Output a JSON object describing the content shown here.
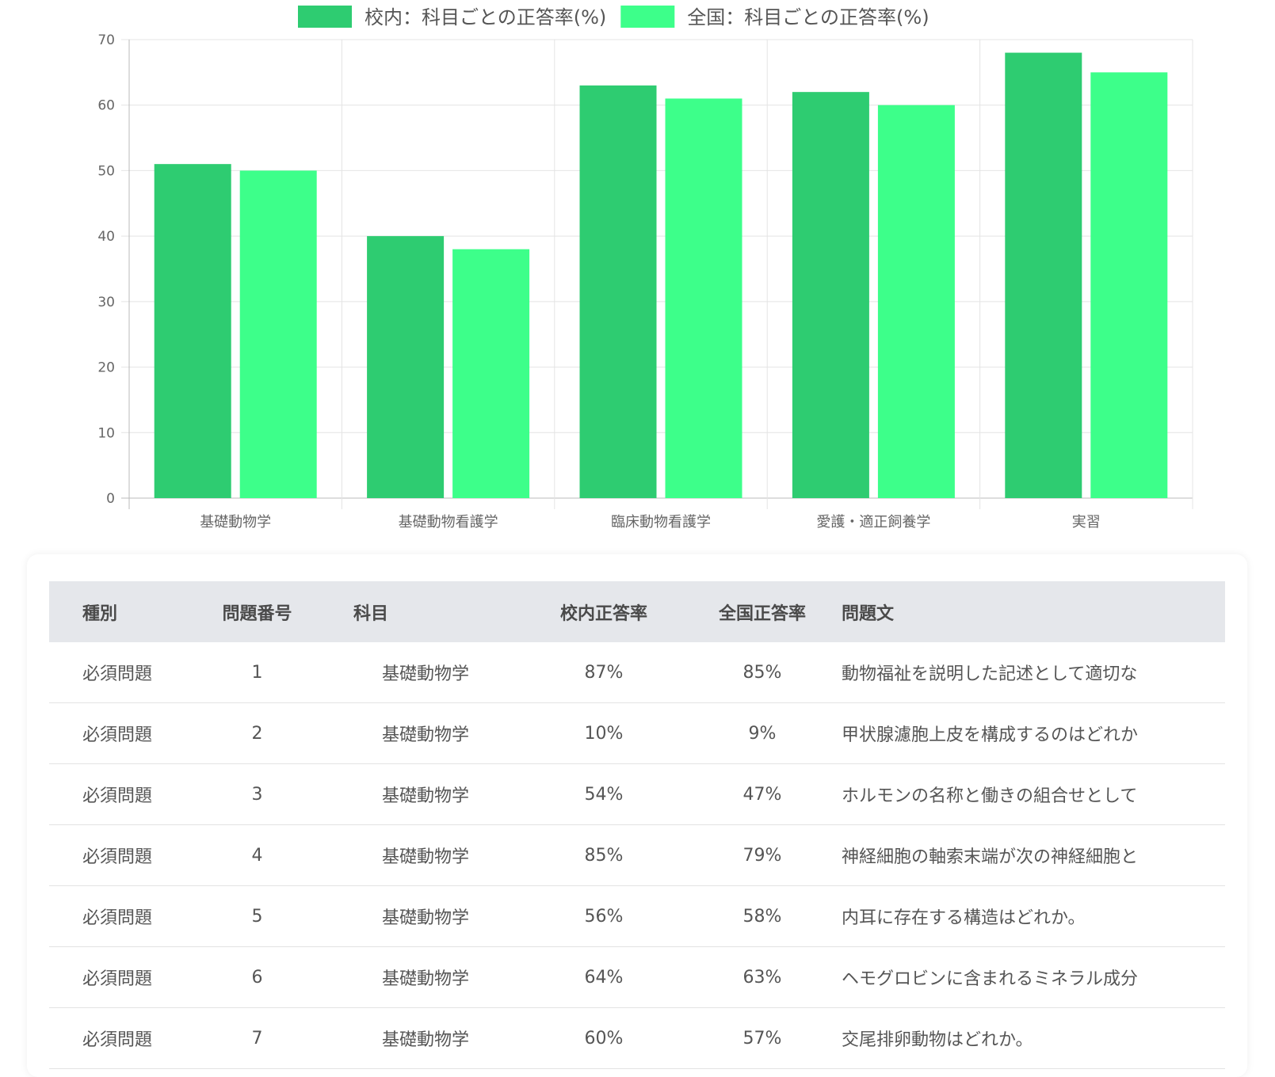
{
  "chart_data": {
    "type": "bar",
    "categories": [
      "基礎動物学",
      "基礎動物看護学",
      "臨床動物看護学",
      "愛護・適正飼養学",
      "実習"
    ],
    "series": [
      {
        "name": "校内：科目ごとの正答率(%)",
        "values": [
          51,
          40,
          63,
          62,
          68
        ],
        "color": "#2ecc71"
      },
      {
        "name": "全国：科目ごとの正答率(%)",
        "values": [
          50,
          38,
          61,
          60,
          65
        ],
        "color": "#3dff8a"
      }
    ],
    "ylim": [
      0,
      70
    ],
    "yticks": [
      0,
      10,
      20,
      30,
      40,
      50,
      60,
      70
    ],
    "grid": true,
    "legend_position": "top-center",
    "title": "",
    "xlabel": "",
    "ylabel": ""
  },
  "table": {
    "headers": [
      "種別",
      "問題番号",
      "科目",
      "校内正答率",
      "全国正答率",
      "問題文"
    ],
    "rows": [
      [
        "必須問題",
        "1",
        "基礎動物学",
        "87%",
        "85%",
        "動物福祉を説明した記述として適切な"
      ],
      [
        "必須問題",
        "2",
        "基礎動物学",
        "10%",
        "9%",
        "甲状腺濾胞上皮を構成するのはどれか"
      ],
      [
        "必須問題",
        "3",
        "基礎動物学",
        "54%",
        "47%",
        "ホルモンの名称と働きの組合せとして"
      ],
      [
        "必須問題",
        "4",
        "基礎動物学",
        "85%",
        "79%",
        "神経細胞の軸索末端が次の神経細胞と"
      ],
      [
        "必須問題",
        "5",
        "基礎動物学",
        "56%",
        "58%",
        "内耳に存在する構造はどれか。"
      ],
      [
        "必須問題",
        "6",
        "基礎動物学",
        "64%",
        "63%",
        "ヘモグロビンに含まれるミネラル成分"
      ],
      [
        "必須問題",
        "7",
        "基礎動物学",
        "60%",
        "57%",
        "交尾排卵動物はどれか。"
      ]
    ]
  }
}
